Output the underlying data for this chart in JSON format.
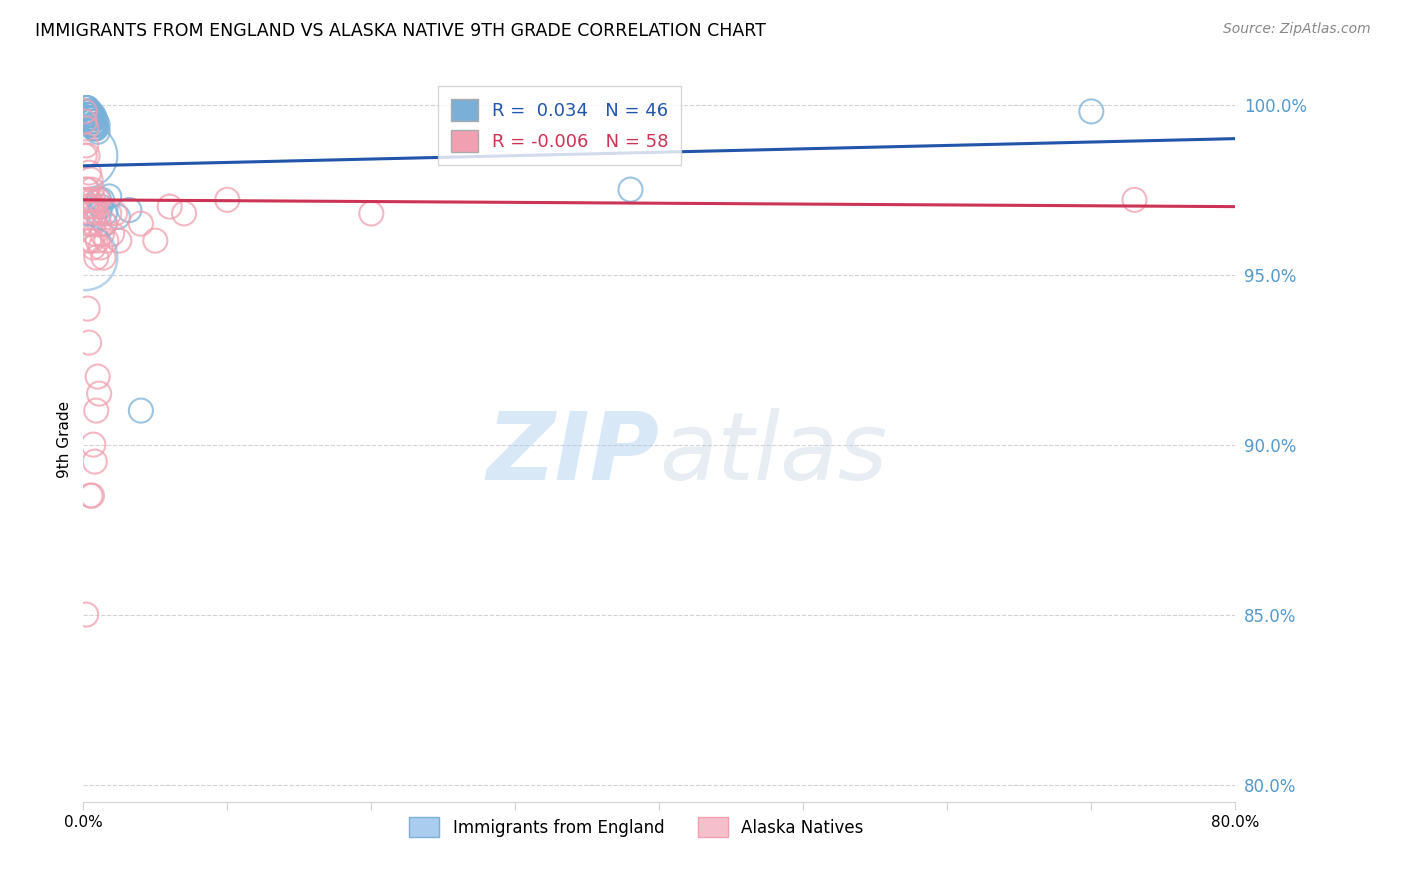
{
  "title": "IMMIGRANTS FROM ENGLAND VS ALASKA NATIVE 9TH GRADE CORRELATION CHART",
  "source": "Source: ZipAtlas.com",
  "ylabel": "9th Grade",
  "blue_R": 0.034,
  "blue_N": 46,
  "pink_R": -0.006,
  "pink_N": 58,
  "blue_color": "#7ab0d8",
  "pink_color": "#f0a0b0",
  "blue_line_color": "#2255aa",
  "pink_line_color": "#cc3355",
  "watermark_zip": "ZIP",
  "watermark_atlas": "atlas",
  "blue_legend": "Immigrants from England",
  "pink_legend": "Alaska Natives",
  "xlim": [
    0.0,
    0.8
  ],
  "ylim": [
    0.795,
    1.008
  ],
  "yticks": [
    0.8,
    0.85,
    0.9,
    0.95,
    1.0
  ],
  "ytick_labels": [
    "80.0%",
    "85.0%",
    "90.0%",
    "95.0%",
    "100.0%"
  ],
  "blue_x": [
    0.001,
    0.002,
    0.002,
    0.002,
    0.003,
    0.003,
    0.003,
    0.003,
    0.003,
    0.004,
    0.004,
    0.004,
    0.004,
    0.004,
    0.005,
    0.005,
    0.005,
    0.005,
    0.006,
    0.006,
    0.006,
    0.006,
    0.007,
    0.007,
    0.007,
    0.007,
    0.008,
    0.008,
    0.008,
    0.009,
    0.009,
    0.01,
    0.01,
    0.011,
    0.011,
    0.012,
    0.013,
    0.015,
    0.015,
    0.018,
    0.024,
    0.032,
    0.04,
    0.38,
    0.7,
    0.001
  ],
  "blue_y": [
    0.998,
    0.999,
    0.999,
    0.998,
    0.999,
    0.998,
    0.997,
    0.996,
    0.997,
    0.998,
    0.997,
    0.996,
    0.997,
    0.996,
    0.998,
    0.997,
    0.996,
    0.995,
    0.997,
    0.996,
    0.995,
    0.994,
    0.997,
    0.996,
    0.994,
    0.993,
    0.996,
    0.994,
    0.993,
    0.995,
    0.993,
    0.994,
    0.992,
    0.972,
    0.968,
    0.97,
    0.972,
    0.968,
    0.965,
    0.973,
    0.967,
    0.969,
    0.91,
    0.975,
    0.998,
    0.985
  ],
  "blue_size": [
    30,
    30,
    30,
    30,
    30,
    30,
    30,
    30,
    30,
    30,
    30,
    30,
    30,
    30,
    30,
    30,
    30,
    30,
    30,
    30,
    30,
    30,
    30,
    30,
    30,
    30,
    30,
    30,
    30,
    30,
    30,
    30,
    30,
    30,
    30,
    30,
    30,
    30,
    30,
    30,
    30,
    30,
    30,
    30,
    30,
    220
  ],
  "pink_x": [
    0.0,
    0.001,
    0.001,
    0.001,
    0.002,
    0.002,
    0.002,
    0.002,
    0.003,
    0.003,
    0.003,
    0.003,
    0.004,
    0.004,
    0.004,
    0.004,
    0.005,
    0.005,
    0.005,
    0.006,
    0.006,
    0.006,
    0.007,
    0.007,
    0.007,
    0.008,
    0.008,
    0.009,
    0.009,
    0.01,
    0.01,
    0.011,
    0.012,
    0.013,
    0.014,
    0.015,
    0.016,
    0.018,
    0.02,
    0.022,
    0.025,
    0.04,
    0.05,
    0.06,
    0.07,
    0.1,
    0.2,
    0.73,
    0.002,
    0.003,
    0.004,
    0.005,
    0.006,
    0.007,
    0.008,
    0.009,
    0.01,
    0.011
  ],
  "pink_y": [
    0.972,
    0.998,
    0.995,
    0.985,
    0.993,
    0.988,
    0.975,
    0.97,
    0.985,
    0.975,
    0.972,
    0.965,
    0.98,
    0.972,
    0.968,
    0.96,
    0.978,
    0.97,
    0.965,
    0.975,
    0.968,
    0.96,
    0.972,
    0.965,
    0.958,
    0.97,
    0.962,
    0.968,
    0.955,
    0.972,
    0.96,
    0.965,
    0.958,
    0.962,
    0.955,
    0.965,
    0.96,
    0.968,
    0.962,
    0.968,
    0.96,
    0.965,
    0.96,
    0.97,
    0.968,
    0.972,
    0.968,
    0.972,
    0.85,
    0.94,
    0.93,
    0.885,
    0.885,
    0.9,
    0.895,
    0.91,
    0.92,
    0.915
  ],
  "pink_size": [
    30,
    30,
    30,
    30,
    30,
    30,
    30,
    30,
    30,
    30,
    30,
    30,
    30,
    30,
    30,
    30,
    30,
    30,
    30,
    30,
    30,
    30,
    30,
    30,
    30,
    30,
    30,
    30,
    30,
    30,
    30,
    30,
    30,
    30,
    30,
    30,
    30,
    30,
    30,
    30,
    30,
    30,
    30,
    30,
    30,
    30,
    30,
    30,
    30,
    30,
    30,
    30,
    30,
    30,
    30,
    30,
    30,
    30
  ]
}
